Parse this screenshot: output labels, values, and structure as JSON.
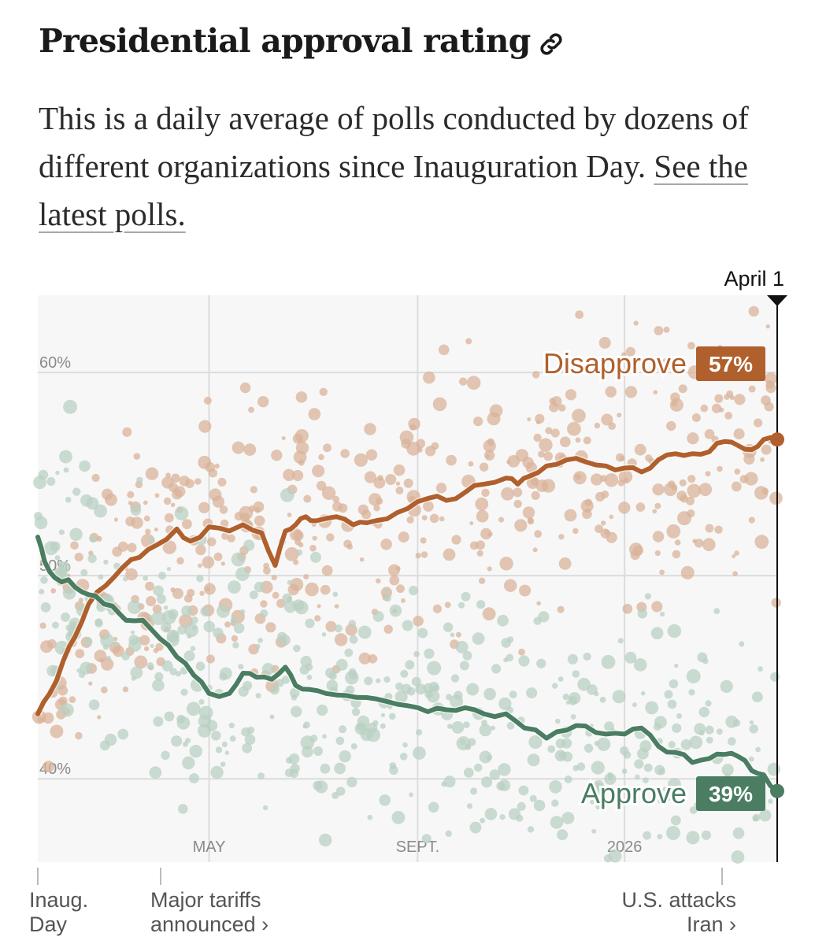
{
  "header": {
    "title": "Presidential approval rating",
    "link_icon": "link-icon",
    "description_text": "This is a daily average of polls conducted by dozens of different organizations since Inauguration Day. ",
    "description_link": "See the latest polls."
  },
  "colors": {
    "disapprove": "#b0602d",
    "approve": "#4a7d62",
    "disapprove_dots": "#d9b39a",
    "approve_dots": "#b9d0c3",
    "plot_bg": "#f7f7f7",
    "grid": "#dcdcdc"
  },
  "chart_data": {
    "type": "line",
    "title": "Presidential approval rating",
    "xlabel": "",
    "ylabel": "",
    "x_domain_days": [
      0,
      436
    ],
    "ylim": [
      35.9,
      63.8
    ],
    "yticks": [
      {
        "value": 40,
        "label": "40%"
      },
      {
        "value": 50,
        "label": "50%"
      },
      {
        "value": 60,
        "label": "60%"
      }
    ],
    "xticks": [
      {
        "day": 101,
        "label": "MAY"
      },
      {
        "day": 224,
        "label": "SEPT."
      },
      {
        "day": 346,
        "label": "2026"
      }
    ],
    "current_marker": {
      "day": 436,
      "label": "April 1"
    },
    "series": [
      {
        "name": "Disapprove",
        "end_label": "Disapprove",
        "end_value_label": "57%",
        "points": [
          [
            0,
            43.2
          ],
          [
            7,
            44.2
          ],
          [
            15,
            45.8
          ],
          [
            22,
            47
          ],
          [
            30,
            48.6
          ],
          [
            40,
            49.5
          ],
          [
            50,
            50.4
          ],
          [
            60,
            50.9
          ],
          [
            70,
            51.5
          ],
          [
            82,
            52.3
          ],
          [
            90,
            51.7
          ],
          [
            101,
            52.4
          ],
          [
            113,
            52.2
          ],
          [
            121,
            52.5
          ],
          [
            132,
            52.1
          ],
          [
            140,
            50.5
          ],
          [
            146,
            52.2
          ],
          [
            152,
            52.5
          ],
          [
            158,
            52.9
          ],
          [
            164,
            52.7
          ],
          [
            176,
            52.9
          ],
          [
            186,
            52.5
          ],
          [
            194,
            52.6
          ],
          [
            206,
            52.8
          ],
          [
            218,
            53.3
          ],
          [
            230,
            53.8
          ],
          [
            241,
            53.7
          ],
          [
            252,
            54.1
          ],
          [
            263,
            54.5
          ],
          [
            276,
            54.8
          ],
          [
            283,
            54.5
          ],
          [
            290,
            54.9
          ],
          [
            300,
            55.4
          ],
          [
            312,
            55.7
          ],
          [
            323,
            55.6
          ],
          [
            335,
            55.4
          ],
          [
            346,
            55.3
          ],
          [
            356,
            55.1
          ],
          [
            366,
            55.7
          ],
          [
            376,
            56.0
          ],
          [
            386,
            56.0
          ],
          [
            396,
            56.1
          ],
          [
            405,
            56.6
          ],
          [
            413,
            56.4
          ],
          [
            421,
            56.2
          ],
          [
            428,
            56.7
          ],
          [
            436,
            56.7
          ]
        ]
      },
      {
        "name": "Approve",
        "end_label": "Approve",
        "end_value_label": "39%",
        "points": [
          [
            0,
            51.9
          ],
          [
            4,
            50.7
          ],
          [
            10,
            49.9
          ],
          [
            18,
            49.8
          ],
          [
            26,
            49.2
          ],
          [
            34,
            49.0
          ],
          [
            44,
            48.5
          ],
          [
            52,
            47.8
          ],
          [
            62,
            47.8
          ],
          [
            72,
            46.9
          ],
          [
            82,
            46
          ],
          [
            92,
            45.1
          ],
          [
            101,
            44.2
          ],
          [
            113,
            44.2
          ],
          [
            121,
            45.2
          ],
          [
            129,
            45.0
          ],
          [
            138,
            44.9
          ],
          [
            146,
            45.5
          ],
          [
            152,
            44.6
          ],
          [
            160,
            44.4
          ],
          [
            170,
            44.2
          ],
          [
            182,
            44.1
          ],
          [
            194,
            44.0
          ],
          [
            206,
            43.8
          ],
          [
            218,
            43.6
          ],
          [
            230,
            43.3
          ],
          [
            241,
            43.4
          ],
          [
            252,
            43.5
          ],
          [
            263,
            43.2
          ],
          [
            276,
            43.2
          ],
          [
            287,
            42.5
          ],
          [
            300,
            42.0
          ],
          [
            312,
            42.4
          ],
          [
            323,
            42.6
          ],
          [
            335,
            42.2
          ],
          [
            346,
            42.2
          ],
          [
            356,
            42.5
          ],
          [
            366,
            41.6
          ],
          [
            376,
            41.3
          ],
          [
            386,
            40.8
          ],
          [
            396,
            41.0
          ],
          [
            405,
            41.2
          ],
          [
            413,
            41.1
          ],
          [
            421,
            40.4
          ],
          [
            428,
            40.2
          ],
          [
            436,
            39.4
          ]
        ]
      }
    ],
    "annotations": [
      {
        "day": 0,
        "label": "Inaug. Day"
      },
      {
        "day": 73,
        "label": "Major tariffs announced ›"
      },
      {
        "day": 410,
        "label": "U.S. attacks Iran ›"
      }
    ]
  },
  "annotations_text": {
    "inaug_line1": "Inaug.",
    "inaug_line2": "Day",
    "tariffs_line1": "Major tariffs",
    "tariffs_line2": "announced ›",
    "iran_line1": "U.S. attacks",
    "iran_line2": "Iran ›"
  }
}
